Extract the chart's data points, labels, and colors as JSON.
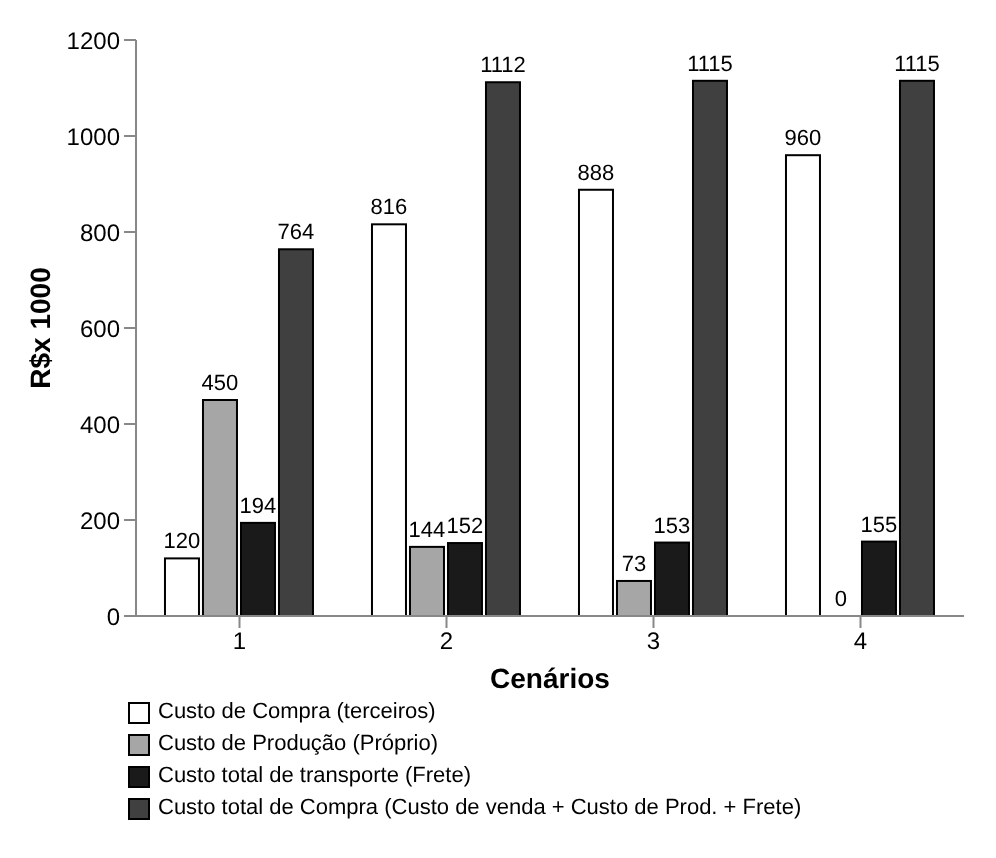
{
  "chart_data": {
    "type": "bar",
    "xlabel": "Cenários",
    "ylabel": "R$x 1000",
    "categories": [
      "1",
      "2",
      "3",
      "4"
    ],
    "series": [
      {
        "name": "Custo de Compra (terceiros)",
        "color": "#ffffff",
        "values": [
          120,
          816,
          888,
          960
        ]
      },
      {
        "name": "Custo de Produção (Próprio)",
        "color": "#a6a6a6",
        "values": [
          450,
          144,
          73,
          0
        ]
      },
      {
        "name": "Custo total de transporte (Frete)",
        "color": "#1a1a1a",
        "values": [
          194,
          152,
          153,
          155
        ]
      },
      {
        "name": "Custo total de Compra (Custo de venda + Custo de Prod. + Frete)",
        "color": "#404040",
        "values": [
          764,
          1112,
          1115,
          1115
        ]
      }
    ],
    "ylim": [
      0,
      1200
    ],
    "yticks": [
      0,
      200,
      400,
      600,
      800,
      1000,
      1200
    ],
    "grid": false,
    "legend": "bottom",
    "data_labels": true
  }
}
